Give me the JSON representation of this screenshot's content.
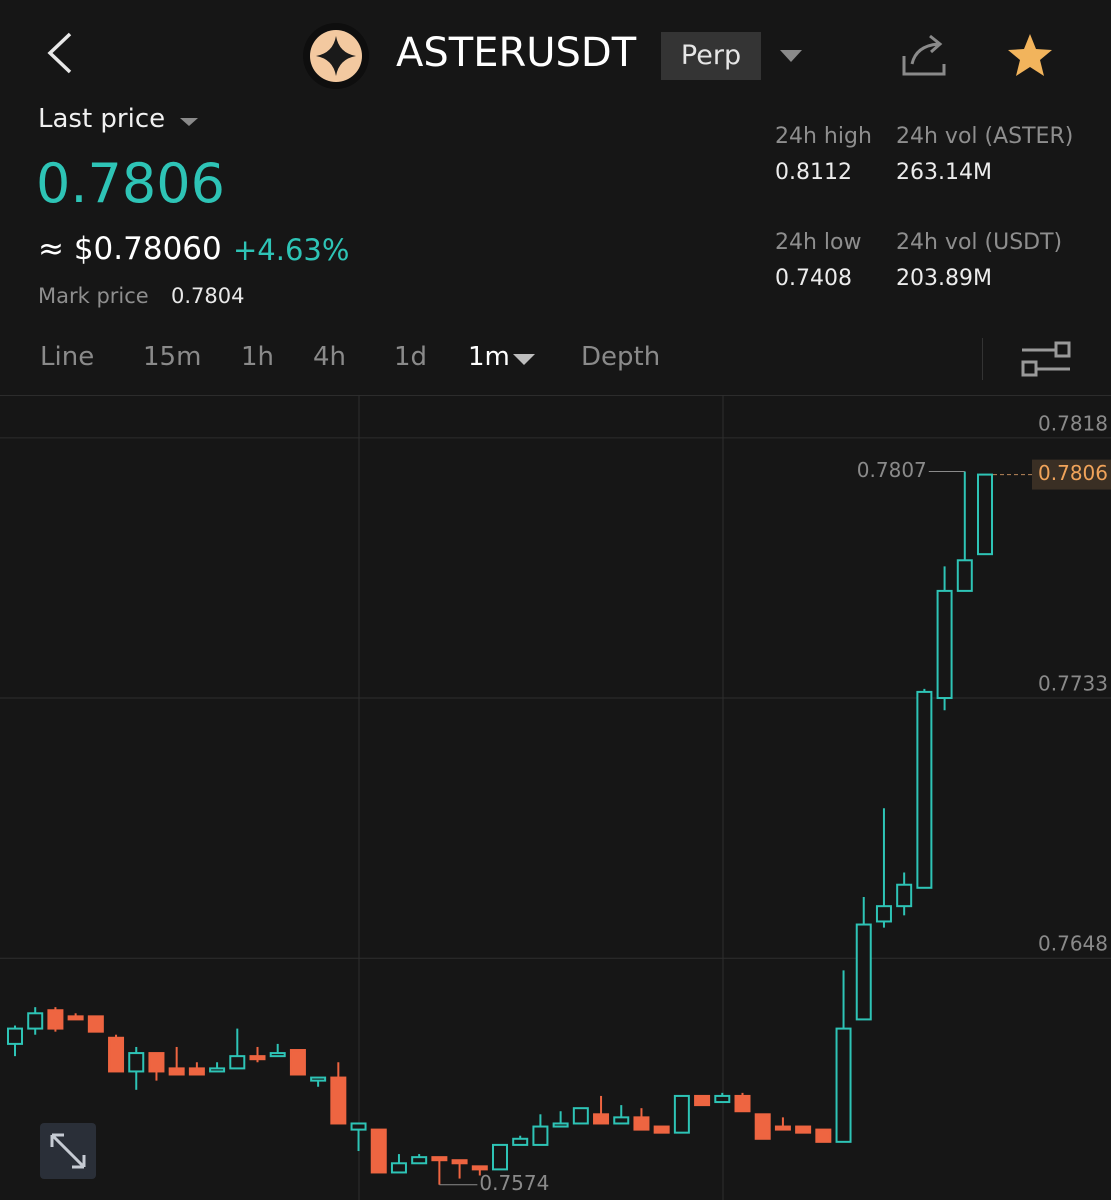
{
  "header": {
    "symbol": "ASTERUSDT",
    "contract": "Perp"
  },
  "price": {
    "label": "Last price",
    "last": "0.7806",
    "usd": "≈ $0.78060",
    "change": "+4.63%",
    "mark_label": "Mark price",
    "mark": "0.7804"
  },
  "stats": [
    {
      "label": "24h high",
      "value": "0.8112"
    },
    {
      "label": "24h vol (ASTER)",
      "value": "263.14M"
    },
    {
      "label": "24h low",
      "value": "0.7408"
    },
    {
      "label": "24h vol (USDT)",
      "value": "203.89M"
    }
  ],
  "tabs": [
    "Line",
    "15m",
    "1h",
    "4h",
    "1d",
    "1m",
    "Depth"
  ],
  "chart_data": {
    "type": "candlestick",
    "open": [
      0.762,
      0.7625,
      0.7631,
      0.7629,
      0.7629,
      0.7622,
      0.7611,
      0.7617,
      0.7612,
      0.7612,
      0.7611,
      0.7612,
      0.7616,
      0.7616,
      0.7618,
      0.7608,
      0.7609,
      0.7592,
      0.7592,
      0.7578,
      0.7581,
      0.7583,
      0.7582,
      0.758,
      0.7579,
      0.7587,
      0.7587,
      0.7593,
      0.7594,
      0.7597,
      0.7594,
      0.7596,
      0.7593,
      0.7591,
      0.7603,
      0.7601,
      0.7603,
      0.7597,
      0.7593,
      0.7593,
      0.7592,
      0.7588,
      0.7628,
      0.766,
      0.7665,
      0.7671,
      0.7733,
      0.7768,
      0.778
    ],
    "high": [
      0.7626,
      0.7632,
      0.7632,
      0.763,
      0.7629,
      0.7623,
      0.7619,
      0.7617,
      0.7619,
      0.7614,
      0.7614,
      0.7625,
      0.7619,
      0.762,
      0.7618,
      0.7609,
      0.7614,
      0.7594,
      0.7592,
      0.7584,
      0.7584,
      0.7583,
      0.7582,
      0.758,
      0.7587,
      0.759,
      0.7597,
      0.7598,
      0.7599,
      0.7603,
      0.76,
      0.7599,
      0.7593,
      0.7603,
      0.7603,
      0.7604,
      0.7604,
      0.7597,
      0.7596,
      0.7593,
      0.7592,
      0.7644,
      0.7668,
      0.7697,
      0.7676,
      0.7736,
      0.7776,
      0.7807,
      0.7806
    ],
    "low": [
      0.7616,
      0.7623,
      0.7624,
      0.7628,
      0.7624,
      0.7611,
      0.7605,
      0.7608,
      0.761,
      0.761,
      0.7611,
      0.7612,
      0.7614,
      0.7616,
      0.761,
      0.7606,
      0.7594,
      0.7585,
      0.7578,
      0.7578,
      0.7581,
      0.7574,
      0.7576,
      0.7577,
      0.7579,
      0.7587,
      0.7587,
      0.7593,
      0.7594,
      0.7594,
      0.7594,
      0.7592,
      0.7591,
      0.7591,
      0.76,
      0.7601,
      0.7598,
      0.7589,
      0.7592,
      0.7591,
      0.7588,
      0.7588,
      0.7628,
      0.7658,
      0.7662,
      0.7671,
      0.7729,
      0.7768,
      0.778
    ],
    "close": [
      0.7625,
      0.763,
      0.7625,
      0.7628,
      0.7624,
      0.7611,
      0.7617,
      0.7611,
      0.761,
      0.761,
      0.7612,
      0.7616,
      0.7615,
      0.7617,
      0.761,
      0.7609,
      0.7594,
      0.7594,
      0.7578,
      0.7581,
      0.7583,
      0.7582,
      0.7581,
      0.7579,
      0.7587,
      0.7589,
      0.7593,
      0.7594,
      0.7599,
      0.7594,
      0.7596,
      0.7592,
      0.7591,
      0.7603,
      0.76,
      0.7603,
      0.7598,
      0.7589,
      0.7592,
      0.7591,
      0.7588,
      0.7625,
      0.7659,
      0.7665,
      0.7672,
      0.7735,
      0.7768,
      0.7778,
      0.7806
    ],
    "ylim": [
      0.7569,
      0.7832
    ],
    "yticks": [
      0.7818,
      0.7733,
      0.7648
    ],
    "grid": true,
    "max_label": 0.7807,
    "min_label": 0.7574,
    "last_price_tag": 0.7806,
    "up_color": "#2ec4b6",
    "down_color": "#ee6541"
  }
}
